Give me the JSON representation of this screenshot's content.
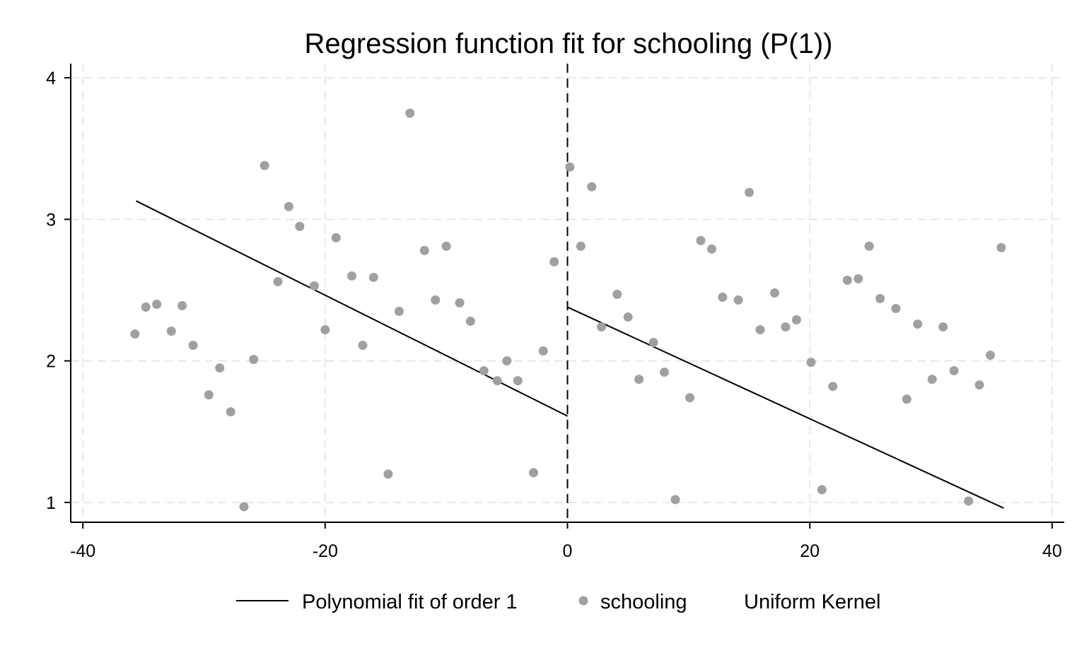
{
  "chart_data": {
    "type": "scatter",
    "title": "Regression function fit for schooling (P(1))",
    "xlabel": "",
    "ylabel": "",
    "xlim": [
      -41,
      41
    ],
    "ylim": [
      0.86,
      4.1
    ],
    "x_ticks": [
      -40,
      -20,
      0,
      20,
      40
    ],
    "y_ticks": [
      1,
      2,
      3,
      4
    ],
    "x_tick_labels": [
      "-40",
      "-20",
      "0",
      "20",
      "40"
    ],
    "y_tick_labels": [
      "1",
      "2",
      "3",
      "4"
    ],
    "grid": true,
    "cutoff": 0,
    "legend_position": "bottom",
    "colors": {
      "points": "#a0a0a0",
      "fit": "#000000",
      "grid": "#e8e8e8"
    },
    "series": [
      {
        "name": "schooling",
        "type": "scatter",
        "x": [
          -35.7,
          -34.8,
          -33.9,
          -32.7,
          -31.8,
          -30.9,
          -29.6,
          -28.7,
          -27.8,
          -26.7,
          -25.9,
          -25.0,
          -23.9,
          -23.0,
          -22.1,
          -20.9,
          -20.0,
          -19.1,
          -17.8,
          -16.9,
          -16.0,
          -14.8,
          -13.9,
          -13.0,
          -11.8,
          -10.9,
          -10.0,
          -8.9,
          -8.0,
          -6.9,
          -5.8,
          -5.0,
          -4.1,
          -2.8,
          -2.0,
          -1.1,
          0.2,
          1.1,
          2.0,
          2.8,
          4.1,
          5.0,
          5.9,
          7.1,
          8.0,
          8.9,
          10.1,
          11.0,
          11.9,
          12.8,
          14.1,
          15.0,
          15.9,
          17.1,
          18.0,
          18.9,
          20.1,
          21.0,
          21.9,
          23.1,
          24.0,
          24.9,
          25.8,
          27.1,
          28.0,
          28.9,
          30.1,
          31.0,
          31.9,
          33.1,
          34.0,
          34.9,
          35.8
        ],
        "y": [
          2.19,
          2.38,
          2.4,
          2.21,
          2.39,
          2.11,
          1.76,
          1.95,
          1.64,
          0.97,
          2.01,
          3.38,
          2.56,
          3.09,
          2.95,
          2.53,
          2.22,
          2.87,
          2.6,
          2.11,
          2.59,
          1.2,
          2.35,
          3.75,
          2.78,
          2.43,
          2.81,
          2.41,
          2.28,
          1.93,
          1.86,
          2.0,
          1.86,
          1.21,
          2.07,
          2.7,
          3.37,
          2.81,
          3.23,
          2.24,
          2.47,
          2.31,
          1.87,
          2.13,
          1.92,
          1.02,
          1.74,
          2.85,
          2.79,
          2.45,
          2.43,
          3.19,
          2.22,
          2.48,
          2.24,
          2.29,
          1.99,
          1.09,
          1.82,
          2.57,
          2.58,
          2.81,
          2.44,
          2.37,
          1.73,
          2.26,
          1.87,
          2.24,
          1.93,
          1.01,
          1.83,
          2.04,
          2.8
        ]
      },
      {
        "name": "Polynomial fit of order 1",
        "type": "line",
        "segments": [
          {
            "x": [
              -35.6,
              0
            ],
            "y": [
              3.13,
              1.61
            ]
          },
          {
            "x": [
              0,
              36.0
            ],
            "y": [
              2.38,
              0.96
            ]
          }
        ]
      }
    ],
    "legend": [
      {
        "label": "Polynomial fit of order 1",
        "symbol": "line"
      },
      {
        "label": "schooling",
        "symbol": "dot"
      },
      {
        "label": "Uniform Kernel",
        "symbol": "none"
      }
    ]
  }
}
